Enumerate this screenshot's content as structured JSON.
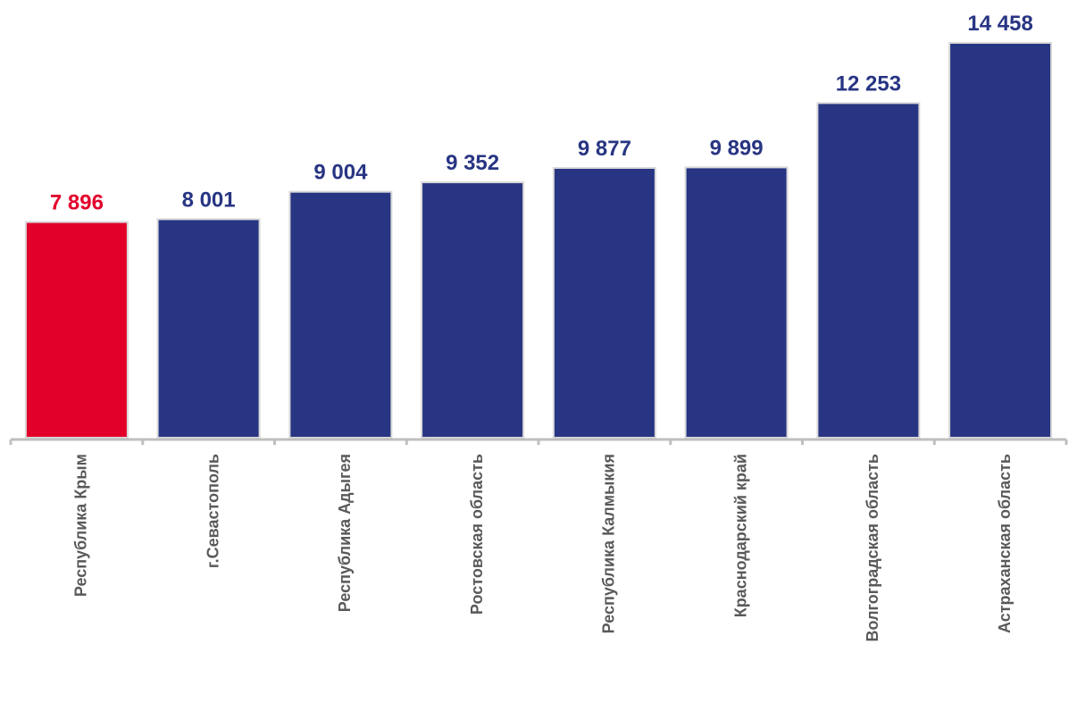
{
  "chart_data": {
    "type": "bar",
    "categories": [
      "Республика Крым",
      "г.Севастополь",
      "Республика Адыгея",
      "Ростовская область",
      "Республика Калмыкия",
      "Краснодарский край",
      "Волгоградская область",
      "Астраханская область"
    ],
    "values": [
      7896,
      8001,
      9004,
      9352,
      9877,
      9899,
      12253,
      14458
    ],
    "value_labels": [
      "7 896",
      "8 001",
      "9 004",
      "9 352",
      "9 877",
      "9 899",
      "12 253",
      "14 458"
    ],
    "highlight_index": 0,
    "title": "",
    "xlabel": "",
    "ylabel": "",
    "ylim": [
      0,
      14458
    ],
    "grid": false,
    "legend": "none"
  },
  "colors": {
    "bar": "#283583",
    "highlight": "#E2002A",
    "bar_edge": "#D9D9D9",
    "axis": "#BFBFBF",
    "category_text": "#595959"
  }
}
